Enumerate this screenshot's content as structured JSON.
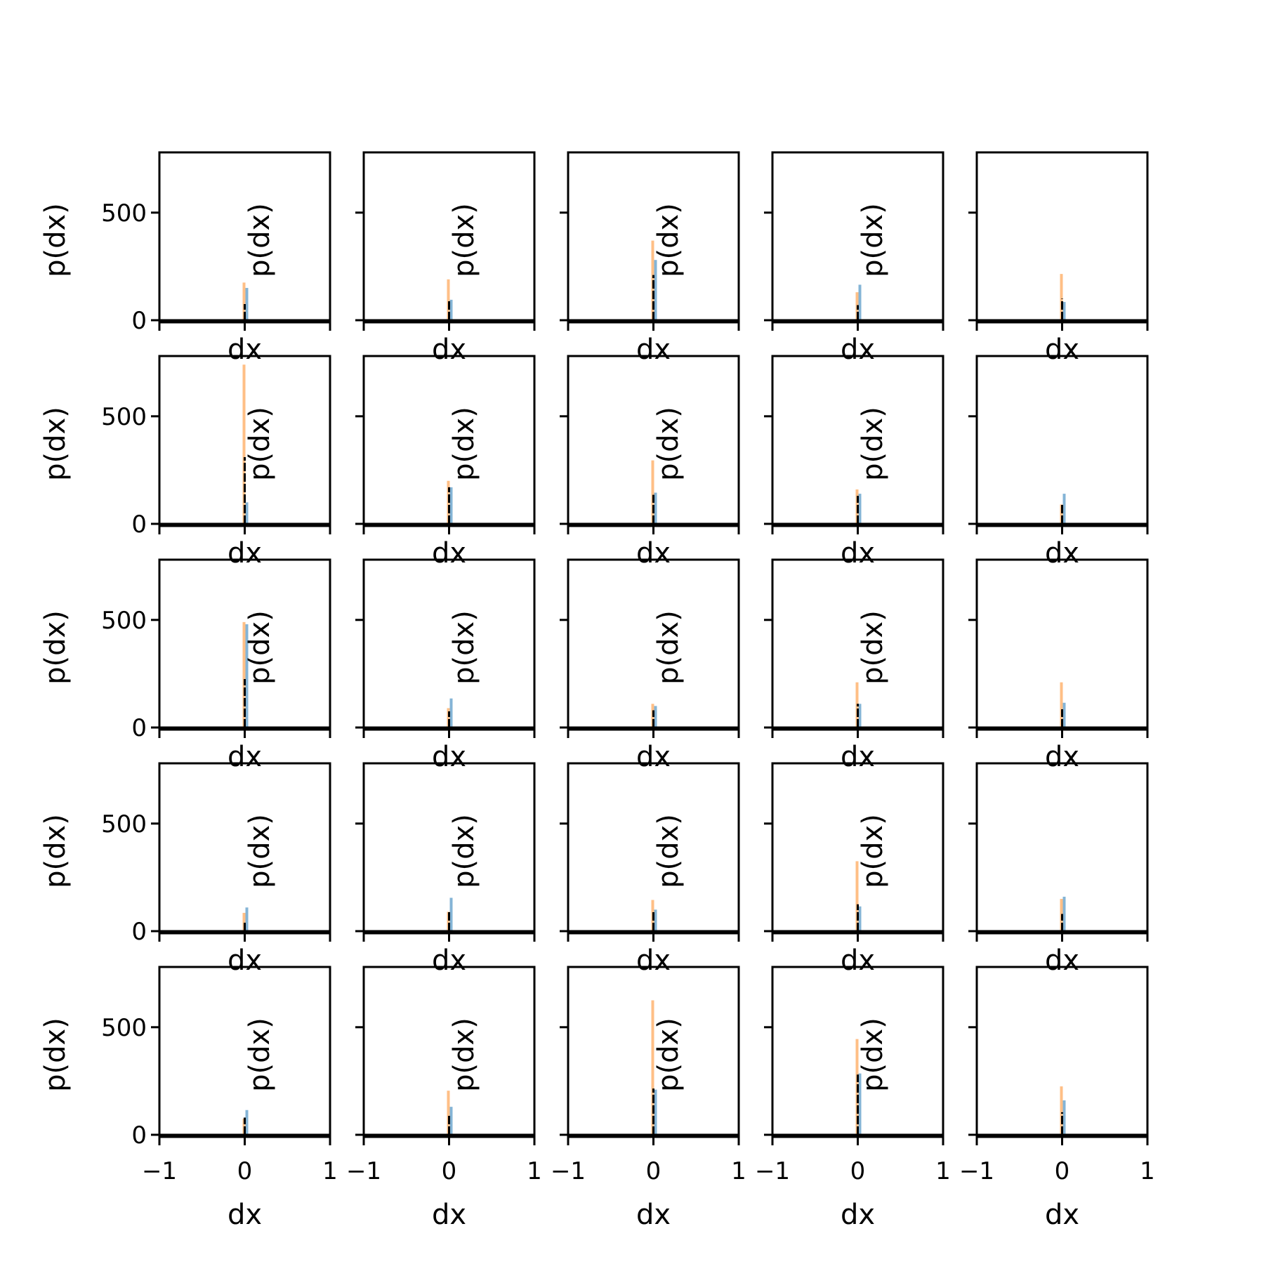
{
  "chart_data": {
    "type": "bar",
    "layout_grid": [
      5,
      5
    ],
    "colors": {
      "series_a": "#1f77b4",
      "series_b": "#ff7f0e",
      "line": "#000000"
    },
    "series_names": [
      "",
      "",
      ""
    ],
    "xlabel": "dx",
    "ylabel": "p(dx)",
    "xlim": [
      -1,
      1
    ],
    "ylim": [
      0,
      780
    ],
    "xticks": [
      -1,
      0,
      1
    ],
    "xtick_labels": [
      "−1",
      "0",
      "1"
    ],
    "yticks": [
      0,
      500
    ],
    "ytick_labels": [
      "0",
      "500"
    ],
    "panels": [
      {
        "a": 150,
        "b": 175,
        "l": 75
      },
      {
        "a": 95,
        "b": 190,
        "l": 90
      },
      {
        "a": 280,
        "b": 370,
        "l": 210
      },
      {
        "a": 165,
        "b": 130,
        "l": 70
      },
      {
        "a": 85,
        "b": 215,
        "l": 100
      },
      {
        "a": 100,
        "b": 740,
        "l": 310
      },
      {
        "a": 170,
        "b": 200,
        "l": 170
      },
      {
        "a": 145,
        "b": 295,
        "l": 135
      },
      {
        "a": 140,
        "b": 160,
        "l": 130
      },
      {
        "a": 140,
        "b": 90,
        "l": 95
      },
      {
        "a": 480,
        "b": 490,
        "l": 225
      },
      {
        "a": 135,
        "b": 90,
        "l": 75
      },
      {
        "a": 100,
        "b": 110,
        "l": 80
      },
      {
        "a": 110,
        "b": 210,
        "l": 110
      },
      {
        "a": 115,
        "b": 210,
        "l": 85
      },
      {
        "a": 110,
        "b": 85,
        "l": 40
      },
      {
        "a": 155,
        "b": 90,
        "l": 95
      },
      {
        "a": 100,
        "b": 145,
        "l": 95
      },
      {
        "a": 115,
        "b": 325,
        "l": 125
      },
      {
        "a": 160,
        "b": 150,
        "l": 80
      },
      {
        "a": 115,
        "b": 75,
        "l": 80
      },
      {
        "a": 130,
        "b": 205,
        "l": 95
      },
      {
        "a": 210,
        "b": 625,
        "l": 215
      },
      {
        "a": 285,
        "b": 445,
        "l": 280
      },
      {
        "a": 160,
        "b": 225,
        "l": 105
      }
    ]
  }
}
